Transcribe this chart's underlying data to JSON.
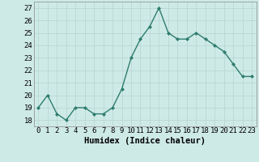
{
  "x": [
    0,
    1,
    2,
    3,
    4,
    5,
    6,
    7,
    8,
    9,
    10,
    11,
    12,
    13,
    14,
    15,
    16,
    17,
    18,
    19,
    20,
    21,
    22,
    23
  ],
  "y": [
    19,
    20,
    18.5,
    18,
    19,
    19,
    18.5,
    18.5,
    19,
    20.5,
    23,
    24.5,
    25.5,
    27,
    25,
    24.5,
    24.5,
    25,
    24.5,
    24,
    23.5,
    22.5,
    21.5,
    21.5
  ],
  "line_color": "#2e7d6e",
  "marker": "D",
  "marker_size": 2,
  "bg_color": "#ceeae7",
  "grid_color": "#b8d4d0",
  "xlabel": "Humidex (Indice chaleur)",
  "xlim": [
    -0.5,
    23.5
  ],
  "ylim": [
    17.5,
    27.5
  ],
  "yticks": [
    18,
    19,
    20,
    21,
    22,
    23,
    24,
    25,
    26,
    27
  ],
  "xtick_labels": [
    "0",
    "1",
    "2",
    "3",
    "4",
    "5",
    "6",
    "7",
    "8",
    "9",
    "10",
    "11",
    "12",
    "13",
    "14",
    "15",
    "16",
    "17",
    "18",
    "19",
    "20",
    "21",
    "22",
    "23"
  ],
  "xlabel_fontsize": 7.5,
  "tick_fontsize": 6.5,
  "line_width": 1.0
}
